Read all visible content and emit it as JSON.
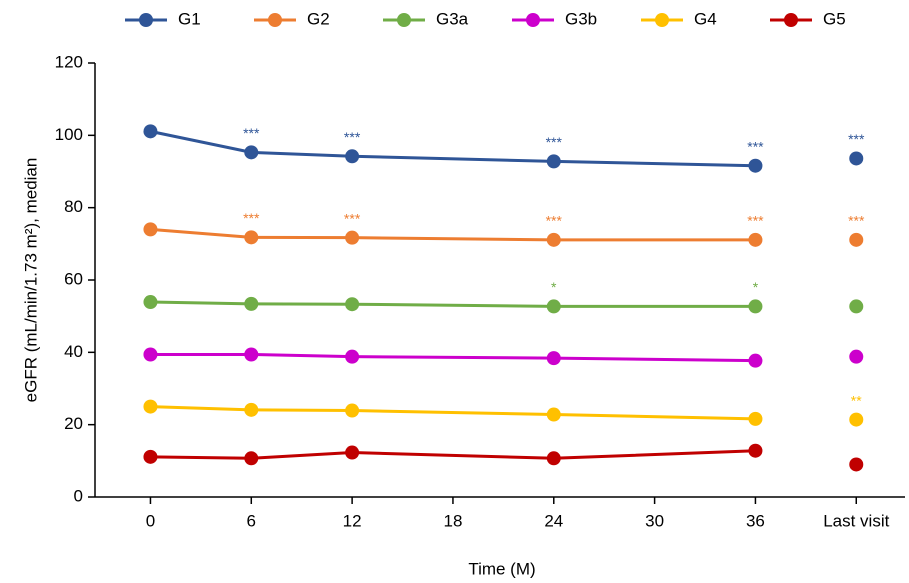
{
  "chart_data": {
    "type": "line",
    "x_label": "Time (M)",
    "y_label": "eGFR (mL/min/1.73 m²), median",
    "x": [
      0,
      6,
      12,
      24,
      36
    ],
    "xlim": [
      -3.3,
      44.9
    ],
    "xticks": [
      0,
      6,
      12,
      18,
      24,
      30,
      36,
      {
        "value": 42,
        "label": "Last visit"
      }
    ],
    "ylim": [
      0,
      120
    ],
    "yticks": [
      0,
      20,
      40,
      60,
      80,
      100,
      120
    ],
    "series": [
      {
        "name": "G1",
        "color": "#2f5597",
        "values": [
          101.1,
          95.3,
          94.2,
          92.8,
          91.6
        ],
        "stars": [
          null,
          "***",
          "***",
          "***",
          "***"
        ],
        "last_visit": 93.6,
        "last_visit_stars": "***"
      },
      {
        "name": "G2",
        "color": "#ed7d31",
        "values": [
          74.0,
          71.8,
          71.7,
          71.1,
          71.1
        ],
        "stars": [
          null,
          "***",
          "***",
          "***",
          "***"
        ],
        "last_visit": 71.1,
        "last_visit_stars": "***"
      },
      {
        "name": "G3a",
        "color": "#70ad47",
        "values": [
          53.9,
          53.4,
          53.3,
          52.7,
          52.7
        ],
        "stars": [
          null,
          null,
          null,
          "*",
          "*"
        ],
        "last_visit": 52.7,
        "last_visit_stars": null
      },
      {
        "name": "G3b",
        "color": "#cc00cc",
        "values": [
          39.4,
          39.4,
          38.8,
          38.4,
          37.7
        ],
        "stars": [
          null,
          null,
          null,
          null,
          null
        ],
        "last_visit": 38.8,
        "last_visit_stars": null
      },
      {
        "name": "G4",
        "color": "#ffc000",
        "values": [
          25.0,
          24.1,
          23.9,
          22.8,
          21.6
        ],
        "stars": [
          null,
          null,
          null,
          null,
          null
        ],
        "last_visit": 21.4,
        "last_visit_stars": "**"
      },
      {
        "name": "G5",
        "color": "#c00000",
        "values": [
          11.1,
          10.7,
          12.3,
          10.7,
          12.8
        ],
        "stars": [
          null,
          null,
          null,
          null,
          null
        ],
        "last_visit": 9.0,
        "last_visit_stars": null
      }
    ]
  }
}
